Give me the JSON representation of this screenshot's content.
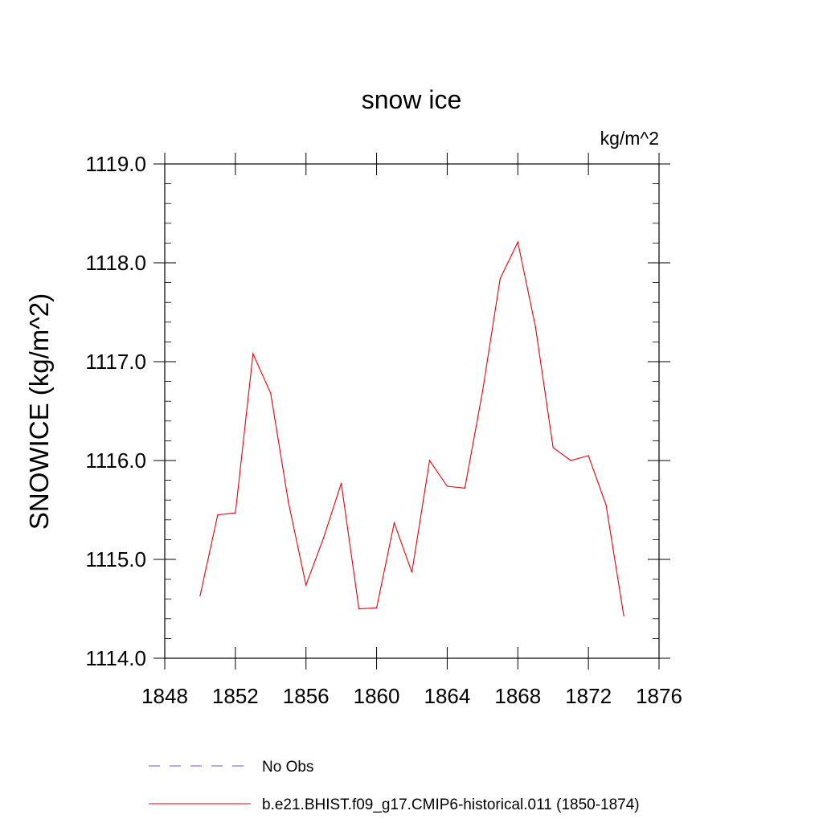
{
  "chart_data": {
    "type": "line",
    "title": "snow ice",
    "units_label": "kg/m^2",
    "ylabel": "SNOWICE  (kg/m^2)",
    "xlabel": "",
    "xlim": [
      1848,
      1876
    ],
    "ylim": [
      1114.0,
      1119.0
    ],
    "x_ticks": [
      1848,
      1852,
      1856,
      1860,
      1864,
      1868,
      1872,
      1876
    ],
    "x_tick_labels": [
      "1848",
      "1852",
      "1856",
      "1860",
      "1864",
      "1868",
      "1872",
      "1876"
    ],
    "y_ticks": [
      1114.0,
      1115.0,
      1116.0,
      1117.0,
      1118.0,
      1119.0
    ],
    "y_tick_labels": [
      "1114.0",
      "1115.0",
      "1116.0",
      "1117.0",
      "1118.0",
      "1119.0"
    ],
    "grid": false,
    "legend_position": "bottom",
    "series": [
      {
        "name": "No Obs",
        "color": "#6a5acd",
        "dash": "dashed",
        "x": [],
        "y": []
      },
      {
        "name": "b.e21.BHIST.f09_g17.CMIP6-historical.011 (1850-1874)",
        "color": "#e8000b",
        "dash": "solid",
        "x": [
          1850,
          1851,
          1852,
          1853,
          1854,
          1855,
          1856,
          1857,
          1858,
          1859,
          1860,
          1861,
          1862,
          1863,
          1864,
          1865,
          1866,
          1867,
          1868,
          1869,
          1870,
          1871,
          1872,
          1873,
          1874
        ],
        "y": [
          1114.63,
          1115.45,
          1115.47,
          1117.08,
          1116.68,
          1115.58,
          1114.74,
          1115.22,
          1115.77,
          1114.5,
          1114.51,
          1115.37,
          1114.87,
          1116.0,
          1115.74,
          1115.72,
          1116.7,
          1117.84,
          1118.21,
          1117.35,
          1116.13,
          1116.0,
          1116.05,
          1115.55,
          1114.43
        ]
      }
    ]
  }
}
